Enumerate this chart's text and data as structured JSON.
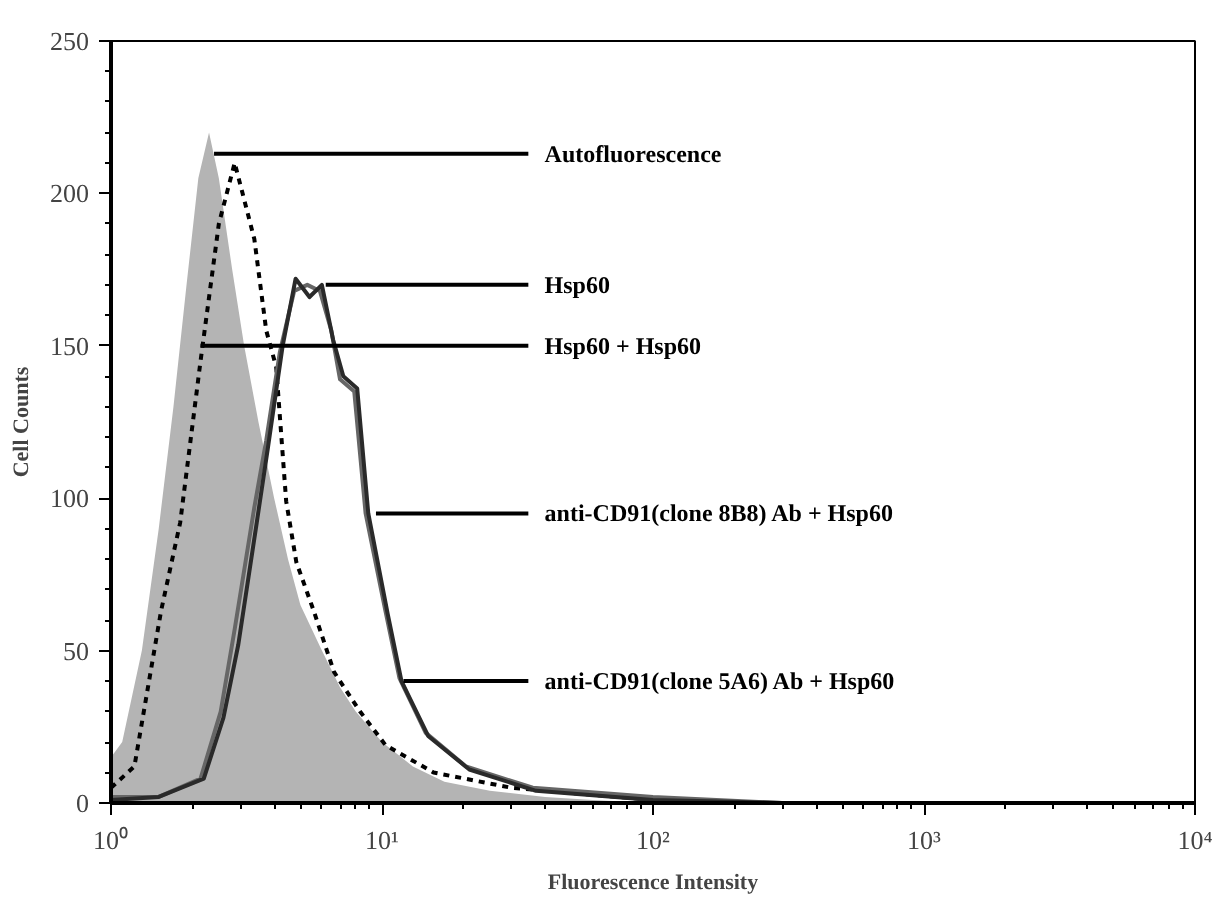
{
  "chart_data": {
    "type": "line",
    "xlabel": "Fluorescence Intensity",
    "ylabel": "Cell Counts",
    "log": "x",
    "grid": false,
    "xlim": [
      1,
      10000
    ],
    "ylim": [
      0,
      250
    ],
    "xticks": [
      {
        "value": 1,
        "label": "10⁰"
      },
      {
        "value": 10,
        "label": "10¹"
      },
      {
        "value": 100,
        "label": "10²"
      },
      {
        "value": 1000,
        "label": "10³"
      },
      {
        "value": 10000,
        "label": "10⁴"
      }
    ],
    "yticks": [
      0,
      50,
      100,
      150,
      200,
      250
    ],
    "series": [
      {
        "type": "area",
        "color": "#b4b4b4",
        "x": [
          1.0,
          1.1,
          1.3,
          1.5,
          1.7,
          1.9,
          2.1,
          2.3,
          2.5,
          2.8,
          3.1,
          3.5,
          4.0,
          4.5,
          5.0,
          6,
          7,
          8,
          10,
          13,
          17,
          25,
          40,
          60,
          100
        ],
        "values": [
          15,
          20,
          50,
          90,
          130,
          170,
          205,
          220,
          205,
          175,
          150,
          125,
          100,
          80,
          65,
          50,
          38,
          30,
          20,
          12,
          7,
          4,
          2,
          1,
          0
        ]
      },
      {
        "line_style": "dotted",
        "color": "#000000",
        "x": [
          1.0,
          1.22,
          1.53,
          1.8,
          2.14,
          2.5,
          2.86,
          3.1,
          3.38,
          3.74,
          4.07,
          4.43,
          4.83,
          5.6,
          6.65,
          8.3,
          10.3,
          15.5,
          30,
          100
        ],
        "values": [
          5,
          12,
          63,
          92,
          145,
          190,
          210,
          198,
          185,
          155,
          143,
          99,
          79,
          63,
          43,
          30,
          19,
          10,
          5,
          1
        ]
      },
      {
        "line_style": "solid",
        "color": "#666666",
        "x": [
          1.0,
          1.5,
          2.14,
          2.54,
          2.86,
          3.38,
          3.74,
          4.2,
          4.74,
          5.3,
          5.9,
          6.5,
          7.0,
          7.9,
          8.7,
          10.3,
          11.6,
          14.5,
          20.4,
          36,
          100,
          300
        ],
        "values": [
          2,
          2,
          8,
          30,
          57,
          97,
          119,
          148,
          168,
          170,
          168,
          155,
          139,
          135,
          95,
          63,
          41,
          23,
          12,
          5,
          2,
          0
        ]
      },
      {
        "line_style": "solid",
        "color": "#2a2a2a",
        "x": [
          1.0,
          1.5,
          2.2,
          2.6,
          2.95,
          3.45,
          3.8,
          4.3,
          4.8,
          5.4,
          6.0,
          6.6,
          7.2,
          8.1,
          8.9,
          10.5,
          11.8,
          14.8,
          21,
          37,
          100,
          300
        ],
        "values": [
          1,
          2,
          8,
          28,
          52,
          92,
          117,
          150,
          172,
          166,
          170,
          152,
          140,
          136,
          95,
          62,
          40,
          22,
          11,
          4,
          1,
          0
        ]
      }
    ],
    "annotations": [
      {
        "text": "Autofluorescence",
        "x": 2.4,
        "y": 213
      },
      {
        "text": "Hsp60",
        "x": 6.2,
        "y": 170
      },
      {
        "text": "Hsp60 + Hsp60",
        "x": 2.14,
        "y": 150
      },
      {
        "text": "anti-CD91(clone 8B8) Ab + Hsp60",
        "x": 9.5,
        "y": 95
      },
      {
        "text": "anti-CD91(clone 5A6) Ab + Hsp60",
        "x": 12,
        "y": 40
      }
    ]
  }
}
